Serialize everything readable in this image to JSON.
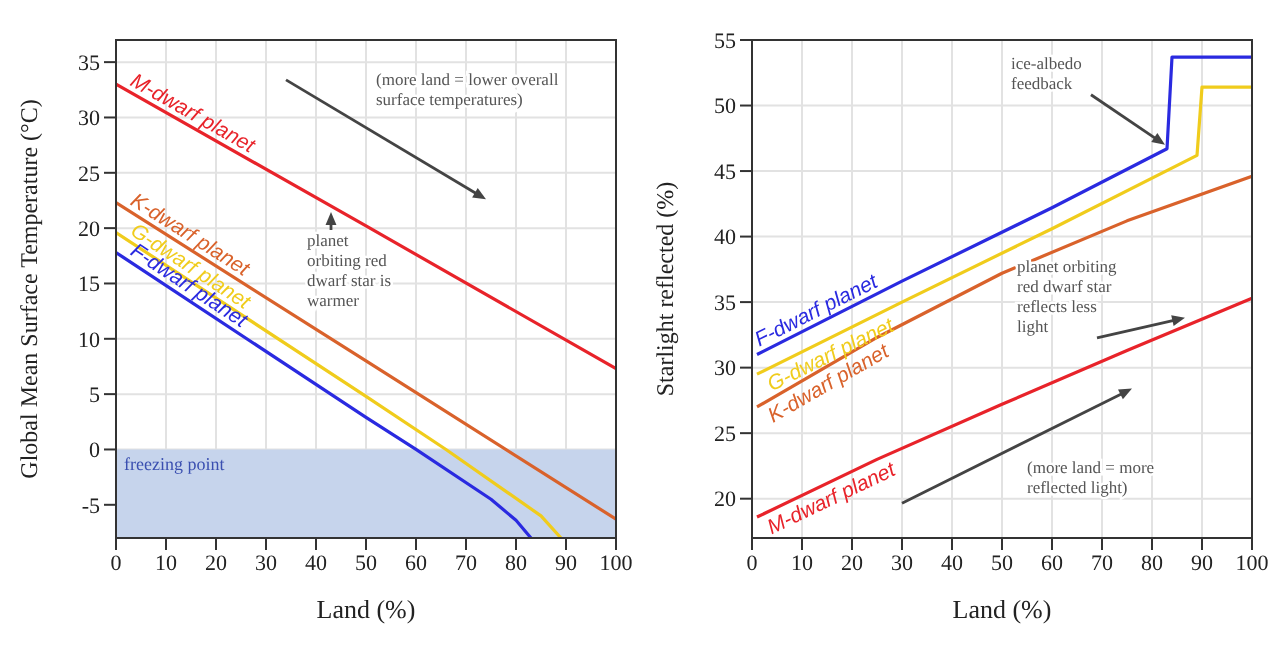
{
  "chart_data": [
    {
      "type": "line",
      "xlabel": "Land (%)",
      "ylabel": "Global Mean Surface Temperature (°C)",
      "xlim": [
        0,
        100
      ],
      "ylim": [
        -8,
        37
      ],
      "xticks": [
        0,
        10,
        20,
        30,
        40,
        50,
        60,
        70,
        80,
        90,
        100
      ],
      "yticks": [
        -5,
        0,
        5,
        10,
        15,
        20,
        25,
        30,
        35
      ],
      "grid": true,
      "marker": "none",
      "line_style": "solid",
      "series": [
        {
          "name": "M-dwarf planet",
          "color": "#e8232a",
          "x": [
            0,
            50,
            100
          ],
          "values": [
            33,
            20.2,
            7.3
          ]
        },
        {
          "name": "K-dwarf planet",
          "color": "#d9622b",
          "x": [
            0,
            50,
            100
          ],
          "values": [
            22.3,
            8,
            -6.3
          ]
        },
        {
          "name": "G-dwarf planet",
          "color": "#f0cc1c",
          "x": [
            0,
            50,
            66,
            85,
            89
          ],
          "values": [
            19.6,
            4.8,
            0,
            -6,
            -8
          ]
        },
        {
          "name": "F-dwarf planet",
          "color": "#2a2ae0",
          "x": [
            0,
            50,
            60,
            75,
            80,
            83
          ],
          "values": [
            17.8,
            2.9,
            0,
            -4.5,
            -6.4,
            -8
          ]
        }
      ],
      "bands": [
        {
          "axis": "y",
          "from": -8,
          "to": 0,
          "label": "freezing point",
          "color": "#c6d4ec"
        }
      ],
      "annotations": [
        "(more land = lower overall surface temperatures)",
        {
          "text": "planet orbiting red dwarf star is warmer",
          "x": 43,
          "y": 22
        }
      ]
    },
    {
      "type": "line",
      "xlabel": "Land (%)",
      "ylabel": "Starlight reflected (%)",
      "xlim": [
        0,
        100
      ],
      "ylim": [
        17,
        55
      ],
      "xticks": [
        0,
        10,
        20,
        30,
        40,
        50,
        60,
        70,
        80,
        90,
        100
      ],
      "yticks": [
        20,
        25,
        30,
        35,
        40,
        45,
        50,
        55
      ],
      "grid": true,
      "marker": "none",
      "line_style": "solid",
      "series": [
        {
          "name": "F-dwarf planet",
          "color": "#2a2ae0",
          "x": [
            1,
            30,
            60,
            83,
            84,
            100
          ],
          "values": [
            31,
            36.6,
            42.2,
            46.7,
            53.7,
            53.7
          ]
        },
        {
          "name": "G-dwarf planet",
          "color": "#f0cc1c",
          "x": [
            1,
            30,
            60,
            89,
            90,
            100
          ],
          "values": [
            29.5,
            35,
            40.6,
            46.2,
            51.4,
            51.4
          ]
        },
        {
          "name": "K-dwarf planet",
          "color": "#d9622b",
          "x": [
            1,
            25,
            50,
            75,
            100
          ],
          "values": [
            27,
            32.3,
            37.2,
            41.2,
            44.6
          ]
        },
        {
          "name": "M-dwarf planet",
          "color": "#e8232a",
          "x": [
            1,
            25,
            50,
            75,
            100
          ],
          "values": [
            18.6,
            23,
            27.2,
            31.3,
            35.3
          ]
        }
      ],
      "annotations": [
        {
          "text": "ice-albedo feedback",
          "x": 83,
          "y": 46.7
        },
        {
          "text": "planet orbiting red dwarf star reflects less light",
          "x": 87,
          "y": 33.5
        },
        "(more land = more reflected light)"
      ]
    }
  ]
}
